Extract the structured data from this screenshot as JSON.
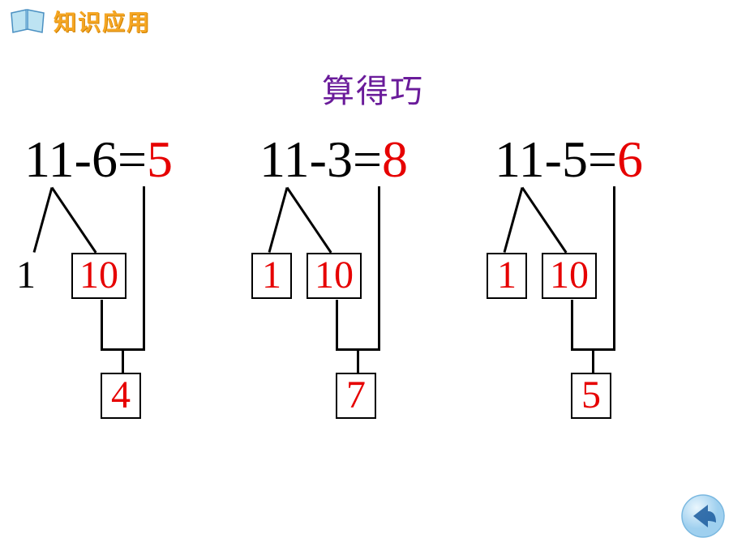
{
  "header": {
    "label": "知识应用",
    "label_color": "#f5a623",
    "icon_fill": "#bde3f2",
    "icon_stroke": "#4a90c2"
  },
  "title": {
    "text": "算得巧",
    "color": "#6a1b9a",
    "fontsize": 40
  },
  "problems": [
    {
      "minuend": "11",
      "op": "-",
      "subtrahend": "6",
      "equals": "=",
      "answer": "5",
      "split_left": "1",
      "split_left_boxed": false,
      "split_left_color": "#000000",
      "split_right": "10",
      "split_right_boxed": true,
      "split_right_color": "#e60000",
      "result": "4"
    },
    {
      "minuend": "11",
      "op": "-",
      "subtrahend": "3",
      "equals": "=",
      "answer": "8",
      "split_left": "1",
      "split_left_boxed": true,
      "split_left_color": "#e60000",
      "split_right": "10",
      "split_right_boxed": true,
      "split_right_color": "#e60000",
      "result": "7"
    },
    {
      "minuend": "11",
      "op": "-",
      "subtrahend": "5",
      "equals": "=",
      "answer": "6",
      "split_left": "1",
      "split_left_boxed": true,
      "split_left_color": "#e60000",
      "split_right": "10",
      "split_right_boxed": true,
      "split_right_color": "#e60000",
      "result": "5"
    }
  ],
  "back_button": {
    "fill_outer": "#cfe8f7",
    "fill_inner": "#9fd0ef",
    "arrow_color": "#1a5a9e"
  },
  "style": {
    "answer_color": "#e60000",
    "text_color": "#000000",
    "background": "#ffffff",
    "equation_fontsize": 64,
    "leaf_fontsize": 48,
    "line_color": "#000000",
    "line_width": 3
  }
}
